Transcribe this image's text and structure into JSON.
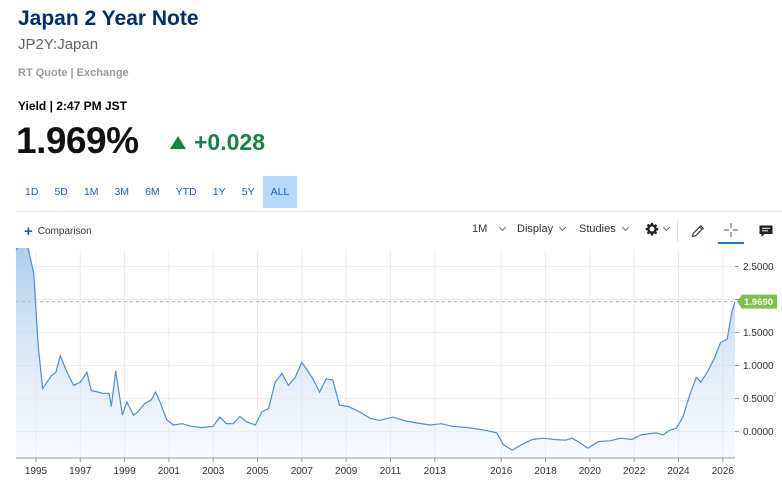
{
  "header": {
    "title": "Japan 2 Year Note",
    "symbol": "JP2Y:Japan",
    "quote_source": "RT Quote | Exchange",
    "yield_time": "Yield | 2:47 PM JST",
    "last": "1.969%",
    "change": "+0.028",
    "change_direction": "up",
    "change_color": "#148447"
  },
  "ranges": {
    "items": [
      "1D",
      "5D",
      "1M",
      "3M",
      "6M",
      "YTD",
      "1Y",
      "5Y",
      "ALL"
    ],
    "selected": "ALL"
  },
  "toolbar": {
    "comparison_label": "Comparison",
    "interval_label": "1M",
    "display_label": "Display",
    "studies_label": "Studies",
    "icons": [
      "settings-gear-icon",
      "draw-pencil-icon",
      "crosshair-icon",
      "comment-icon"
    ]
  },
  "chart_data": {
    "type": "area",
    "x_ticks": [
      "1995",
      "1997",
      "1999",
      "2001",
      "2003",
      "2005",
      "2007",
      "2009",
      "2011",
      "2013",
      "2016",
      "2018",
      "2020",
      "2022",
      "2024",
      "2026"
    ],
    "y_ticks": [
      "2.5000",
      "2.0000",
      "1.5000",
      "1.0000",
      "0.5000",
      "0.0000"
    ],
    "ylim": [
      -0.4,
      2.75
    ],
    "xlim": [
      1994.1,
      2026.55
    ],
    "current_value_label": "1.9690",
    "current_value": 1.969,
    "line_color": "#4f8fcf",
    "marker_color": "#7fc04a",
    "series": [
      {
        "x": [
          1994.1,
          1994.3,
          1994.6,
          1994.9,
          1995.1,
          1995.3,
          1995.7,
          1995.9,
          1996.1,
          1996.4,
          1996.7,
          1997.0,
          1997.3,
          1997.5,
          1997.8,
          1998.0,
          1998.3,
          1998.4,
          1998.6,
          1998.9,
          1999.1,
          1999.4,
          1999.6,
          1999.9,
          2000.2,
          2000.4,
          2000.6,
          2000.9,
          2001.2,
          2001.6,
          2002.0,
          2002.5,
          2003.0,
          2003.3,
          2003.6,
          2003.9,
          2004.2,
          2004.5,
          2004.9,
          2005.2,
          2005.5,
          2005.8,
          2006.1,
          2006.4,
          2006.7,
          2007.0,
          2007.5,
          2007.8,
          2008.1,
          2008.4,
          2008.7,
          2009.1,
          2009.6,
          2010.1,
          2010.5,
          2011.1,
          2011.7,
          2012.2,
          2012.8,
          2013.3,
          2013.8,
          2014.5,
          2015.3,
          2015.8,
          2016.1,
          2016.5,
          2016.9,
          2017.4,
          2017.9,
          2018.4,
          2018.9,
          2019.2,
          2019.6,
          2019.9,
          2020.4,
          2020.9,
          2021.4,
          2021.9,
          2022.3,
          2022.7,
          2023.0,
          2023.3,
          2023.6,
          2023.9,
          2024.2,
          2024.5,
          2024.8,
          2025.0,
          2025.3,
          2025.6,
          2025.9,
          2026.2,
          2026.4,
          2026.55
        ],
        "y": [
          2.75,
          2.85,
          2.85,
          2.4,
          1.3,
          0.65,
          0.85,
          0.9,
          1.15,
          0.9,
          0.7,
          0.75,
          0.9,
          0.62,
          0.6,
          0.58,
          0.58,
          0.38,
          0.92,
          0.25,
          0.45,
          0.25,
          0.3,
          0.42,
          0.48,
          0.6,
          0.45,
          0.18,
          0.1,
          0.12,
          0.08,
          0.06,
          0.08,
          0.22,
          0.12,
          0.12,
          0.23,
          0.15,
          0.1,
          0.3,
          0.35,
          0.75,
          0.88,
          0.7,
          0.82,
          1.05,
          0.8,
          0.6,
          0.8,
          0.78,
          0.4,
          0.38,
          0.3,
          0.2,
          0.17,
          0.22,
          0.16,
          0.13,
          0.1,
          0.12,
          0.08,
          0.06,
          0.02,
          -0.02,
          -0.2,
          -0.28,
          -0.2,
          -0.12,
          -0.1,
          -0.12,
          -0.13,
          -0.1,
          -0.18,
          -0.25,
          -0.15,
          -0.14,
          -0.1,
          -0.12,
          -0.05,
          -0.03,
          -0.02,
          -0.05,
          0.02,
          0.05,
          0.22,
          0.55,
          0.82,
          0.75,
          0.9,
          1.1,
          1.35,
          1.4,
          1.8,
          1.969
        ]
      }
    ]
  }
}
